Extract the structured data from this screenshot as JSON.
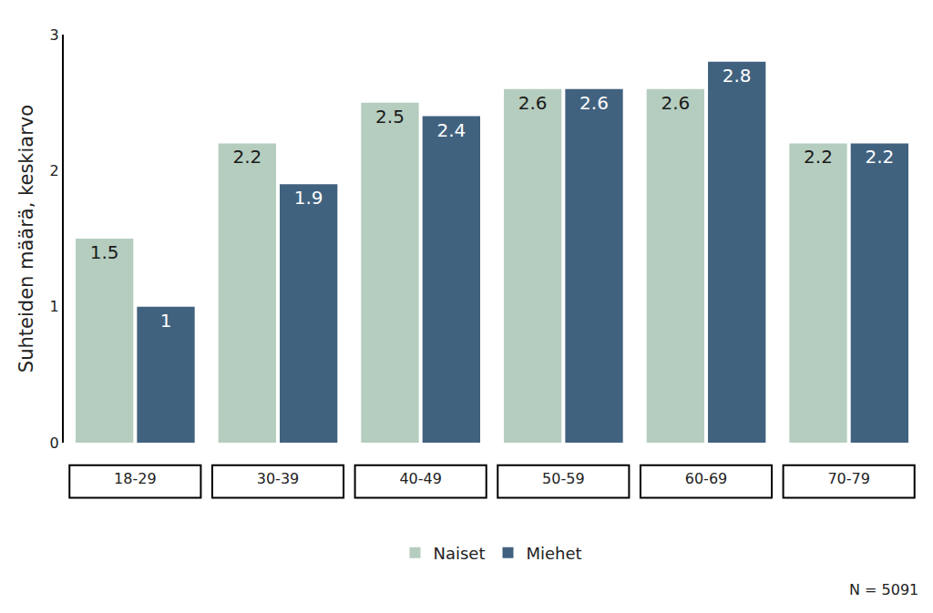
{
  "chart_data": {
    "type": "bar",
    "y_label": "Suhteiden määrä, keskiarvo",
    "categories": [
      "18-29",
      "30-39",
      "40-49",
      "50-59",
      "60-69",
      "70-79"
    ],
    "series": [
      {
        "name": "Naiset",
        "color": "#b5cdbf",
        "values": [
          1.5,
          2.2,
          2.5,
          2.6,
          2.6,
          2.2
        ]
      },
      {
        "name": "Miehet",
        "color": "#41627f",
        "values": [
          1,
          1.9,
          2.4,
          2.6,
          2.8,
          2.2
        ]
      }
    ],
    "ylim": [
      0,
      3
    ],
    "yticks": [
      0,
      1,
      2,
      3
    ],
    "grid": false,
    "legend": "bottom",
    "data_labels": true,
    "annotations": [
      "N = 5091"
    ]
  }
}
